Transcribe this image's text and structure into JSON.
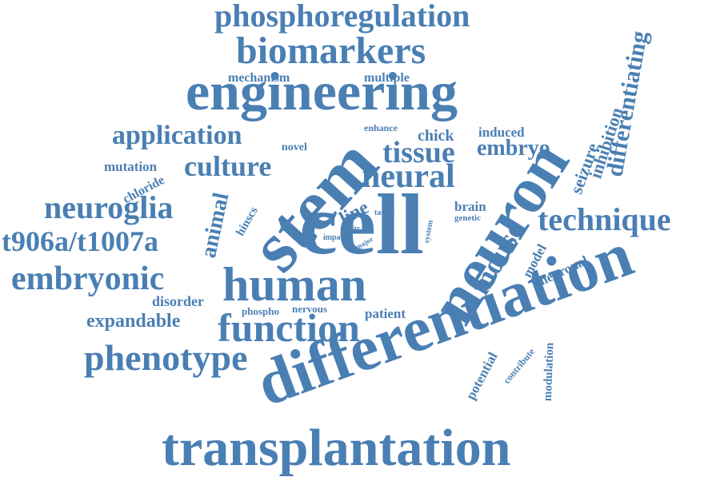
{
  "color": "#4a7fb3",
  "words": [
    "phosphoregulation",
    "biomarkers",
    "engineering",
    "mechanism",
    "multiple",
    "application",
    "novel",
    "chick",
    "induced",
    "embryo",
    "tissue",
    "mutation",
    "culture",
    "neural",
    "enhance",
    "differentiating",
    "inhibition",
    "seizure",
    "chloride",
    "brain",
    "target",
    "genetic",
    "neuroglia",
    "technique",
    "t906a/t1007a",
    "animal",
    "hinscs",
    "line",
    "site",
    "impact",
    "major",
    "system",
    "stem",
    "cell",
    "neuron",
    "mouse",
    "model",
    "neuronal",
    "embryonic",
    "human",
    "disorder",
    "phospho",
    "nervous",
    "patient",
    "expandable",
    "function",
    "differentiation",
    "phenotype",
    "potential",
    "contribute",
    "modulation",
    "transplantation"
  ]
}
